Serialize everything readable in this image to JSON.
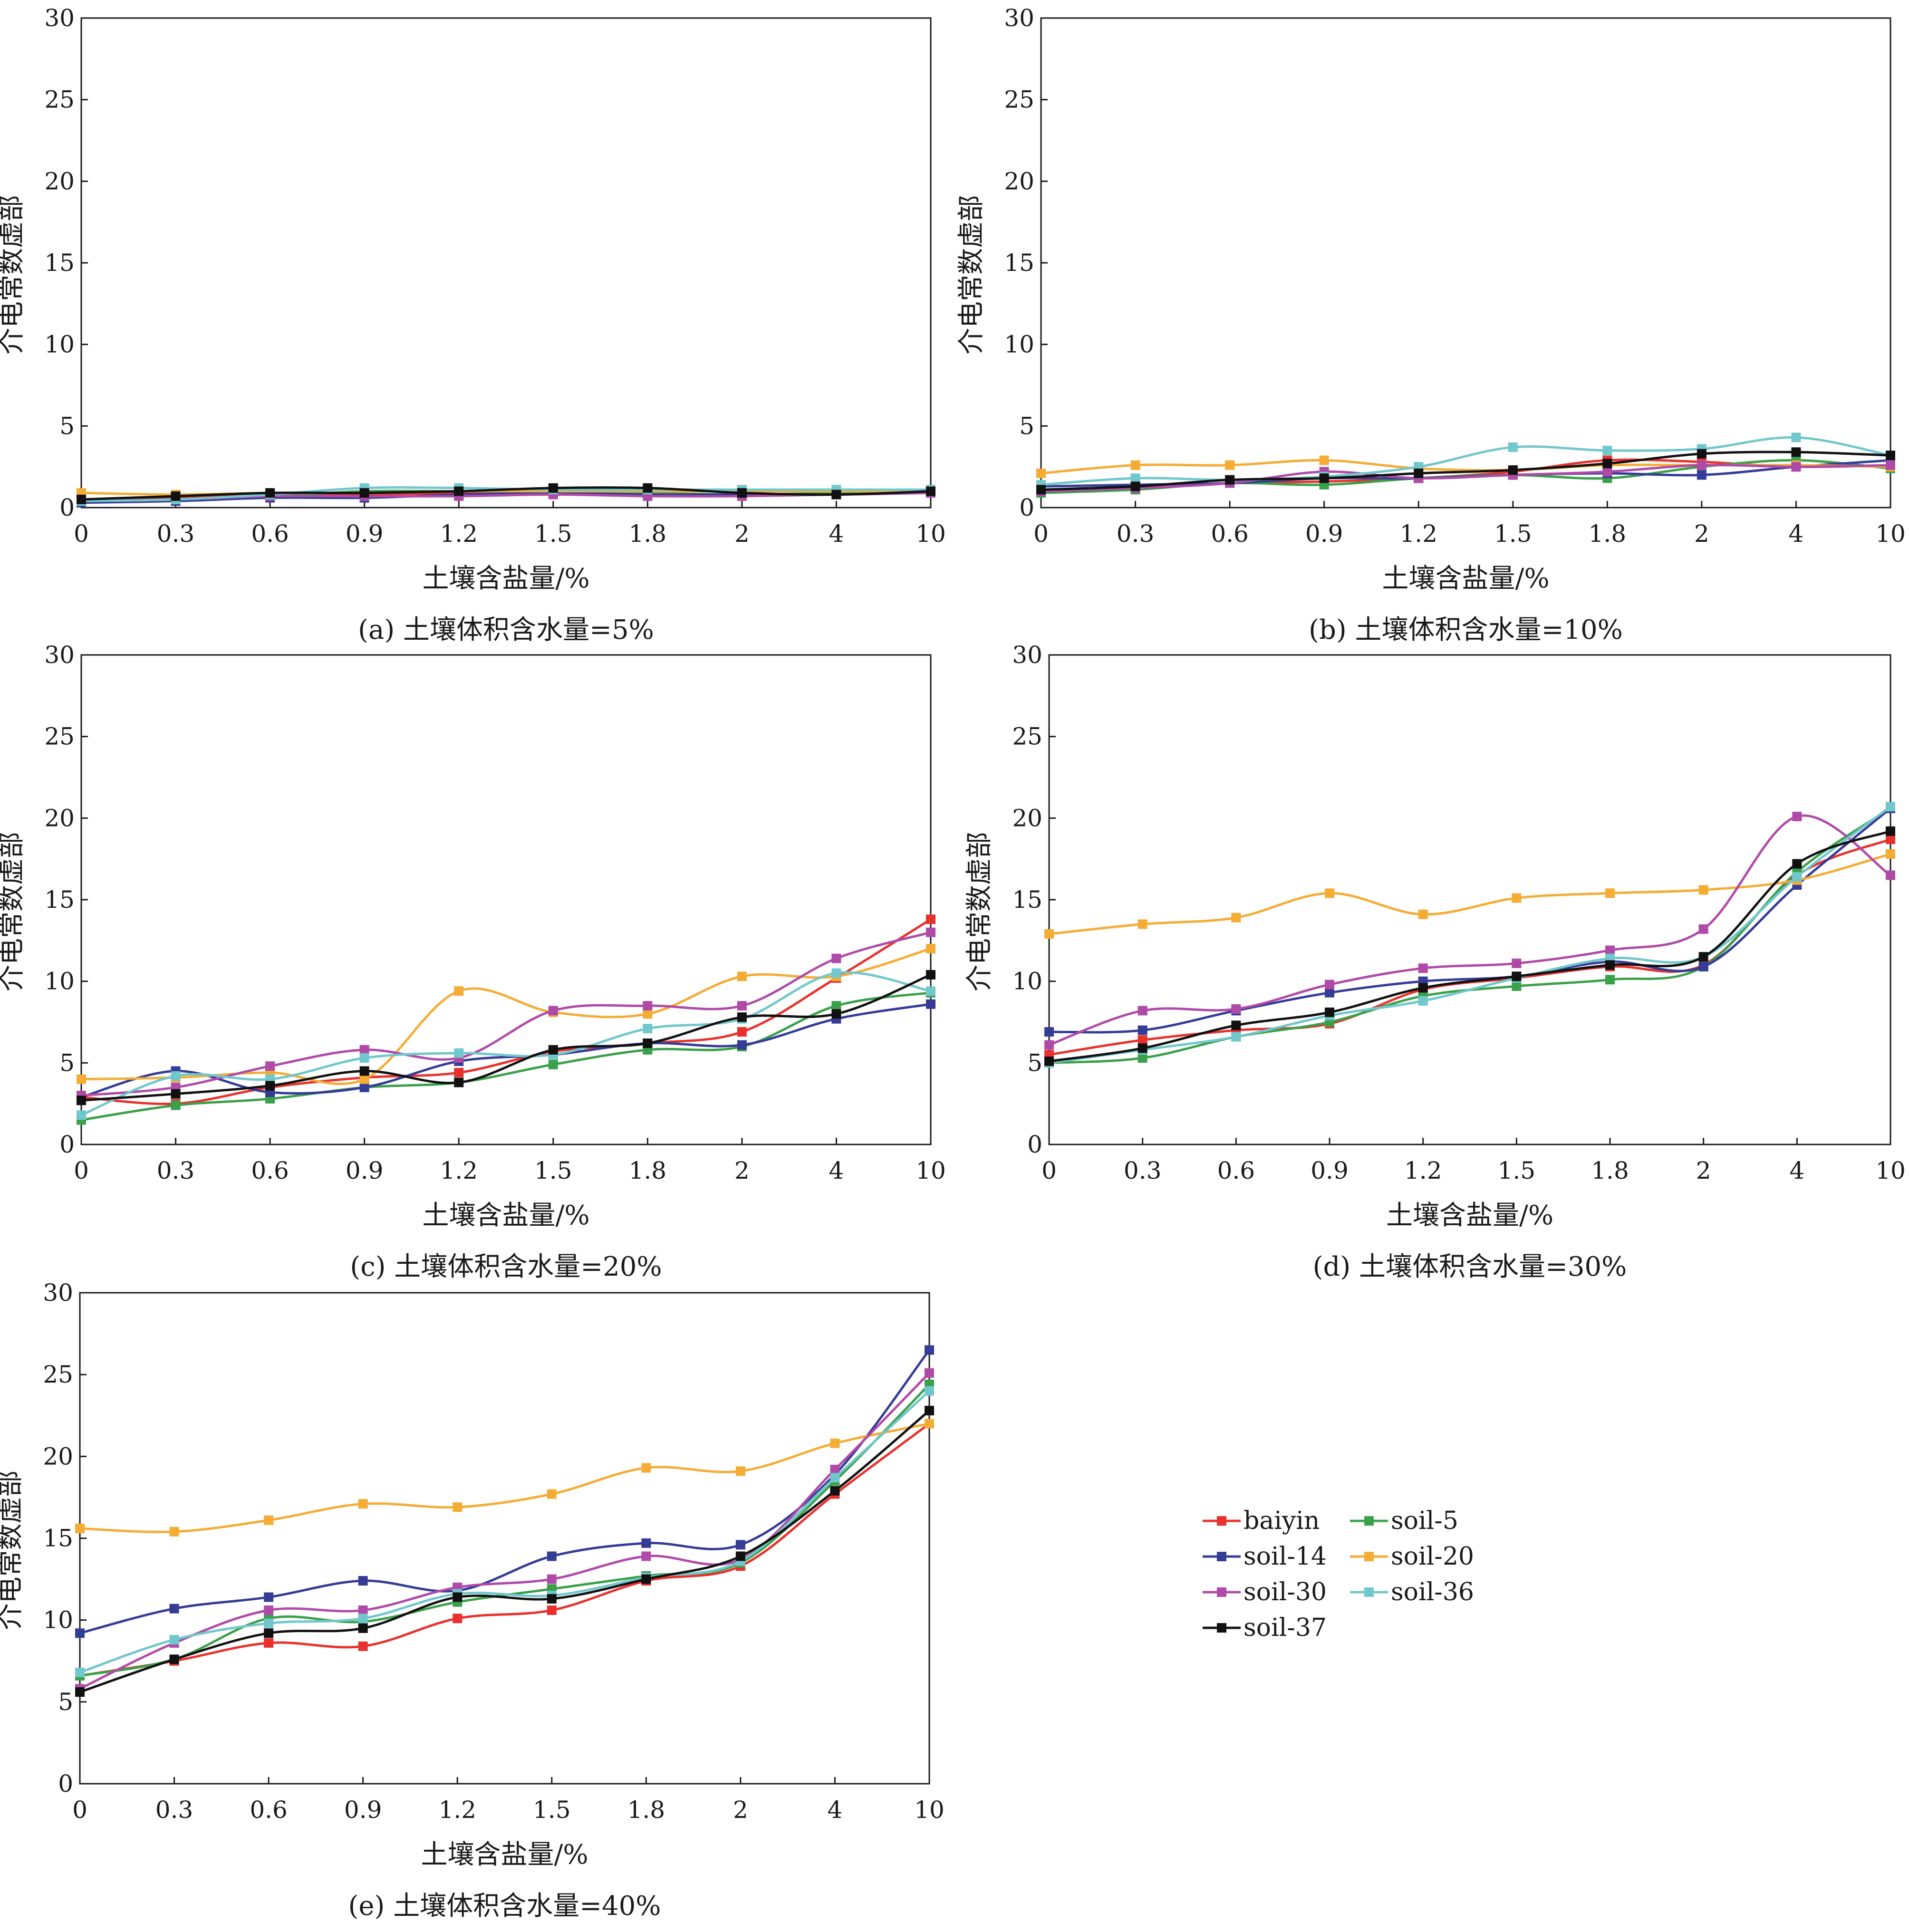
{
  "colors": {
    "baiyin": "#e8312d",
    "soil-5": "#3aa04a",
    "soil-14": "#343c96",
    "soil-20": "#f4ac35",
    "soil-30": "#b04aa8",
    "soil-36": "#70c7cc",
    "soil-37": "#111111"
  },
  "chart_data": [
    {
      "type": "line",
      "caption": "(a) 土壤体积含水量=5%",
      "xlabel": "土壤含盐量/%",
      "ylabel": "介电常数虚部",
      "categories": [
        "0",
        "0.3",
        "0.6",
        "0.9",
        "1.2",
        "1.5",
        "1.8",
        "2",
        "4",
        "10"
      ],
      "ylim": [
        0,
        30
      ],
      "yticks": [
        0,
        5,
        10,
        15,
        20,
        25,
        30
      ],
      "series": [
        {
          "name": "baiyin",
          "values": [
            0.4,
            0.6,
            0.8,
            0.8,
            0.9,
            1.1,
            0.9,
            0.8,
            0.9,
            1.1
          ]
        },
        {
          "name": "soil-5",
          "values": [
            0.3,
            0.5,
            0.7,
            1.0,
            1.0,
            1.0,
            0.9,
            0.8,
            0.9,
            1.0
          ]
        },
        {
          "name": "soil-14",
          "values": [
            0.3,
            0.4,
            0.6,
            0.6,
            0.8,
            0.9,
            0.8,
            0.8,
            0.8,
            0.9
          ]
        },
        {
          "name": "soil-20",
          "values": [
            0.9,
            0.8,
            0.9,
            0.9,
            1.0,
            1.0,
            1.0,
            1.0,
            1.0,
            1.0
          ]
        },
        {
          "name": "soil-30",
          "values": [
            0.4,
            0.5,
            0.7,
            0.7,
            0.7,
            0.8,
            0.7,
            0.7,
            0.8,
            0.9
          ]
        },
        {
          "name": "soil-36",
          "values": [
            0.4,
            0.5,
            0.8,
            1.2,
            1.2,
            1.1,
            1.1,
            1.1,
            1.1,
            1.1
          ]
        },
        {
          "name": "soil-37",
          "values": [
            0.5,
            0.7,
            0.9,
            0.9,
            1.0,
            1.2,
            1.2,
            0.9,
            0.8,
            1.0
          ]
        }
      ]
    },
    {
      "type": "line",
      "caption": "(b) 土壤体积含水量=10%",
      "xlabel": "土壤含盐量/%",
      "ylabel": "介电常数虚部",
      "categories": [
        "0",
        "0.3",
        "0.6",
        "0.9",
        "1.2",
        "1.5",
        "1.8",
        "2",
        "4",
        "10"
      ],
      "ylim": [
        0,
        30
      ],
      "yticks": [
        0,
        5,
        10,
        15,
        20,
        25,
        30
      ],
      "series": [
        {
          "name": "baiyin",
          "values": [
            1.0,
            1.2,
            1.5,
            1.6,
            1.8,
            2.2,
            2.9,
            2.8,
            2.5,
            2.6
          ]
        },
        {
          "name": "soil-5",
          "values": [
            0.9,
            1.1,
            1.5,
            1.4,
            1.8,
            2.0,
            1.8,
            2.5,
            2.9,
            2.4
          ]
        },
        {
          "name": "soil-14",
          "values": [
            1.3,
            1.4,
            1.5,
            1.8,
            1.8,
            2.0,
            2.1,
            2.0,
            2.5,
            2.9
          ]
        },
        {
          "name": "soil-20",
          "values": [
            2.1,
            2.6,
            2.6,
            2.9,
            2.4,
            2.3,
            2.6,
            2.6,
            2.6,
            2.5
          ]
        },
        {
          "name": "soil-30",
          "values": [
            1.0,
            1.2,
            1.5,
            2.2,
            1.8,
            2.0,
            2.2,
            2.6,
            2.5,
            2.6
          ]
        },
        {
          "name": "soil-36",
          "values": [
            1.4,
            1.8,
            1.7,
            1.9,
            2.5,
            3.7,
            3.5,
            3.6,
            4.3,
            3.2
          ]
        },
        {
          "name": "soil-37",
          "values": [
            1.1,
            1.3,
            1.7,
            1.8,
            2.1,
            2.3,
            2.7,
            3.3,
            3.4,
            3.2
          ]
        }
      ]
    },
    {
      "type": "line",
      "caption": "(c) 土壤体积含水量=20%",
      "xlabel": "土壤含盐量/%",
      "ylabel": "介电常数虚部",
      "categories": [
        "0",
        "0.3",
        "0.6",
        "0.9",
        "1.2",
        "1.5",
        "1.8",
        "2",
        "4",
        "10"
      ],
      "ylim": [
        0,
        30
      ],
      "yticks": [
        0,
        5,
        10,
        15,
        20,
        25,
        30
      ],
      "series": [
        {
          "name": "baiyin",
          "values": [
            2.9,
            2.5,
            3.5,
            4.1,
            4.4,
            5.7,
            6.2,
            6.9,
            10.2,
            13.8
          ]
        },
        {
          "name": "soil-5",
          "values": [
            1.5,
            2.4,
            2.8,
            3.5,
            3.8,
            4.9,
            5.8,
            6.0,
            8.5,
            9.3
          ]
        },
        {
          "name": "soil-14",
          "values": [
            2.9,
            4.5,
            3.2,
            3.5,
            5.1,
            5.5,
            6.2,
            6.1,
            7.7,
            8.6
          ]
        },
        {
          "name": "soil-20",
          "values": [
            4.0,
            4.1,
            4.4,
            4.0,
            9.4,
            8.1,
            8.0,
            10.3,
            10.3,
            12.0
          ]
        },
        {
          "name": "soil-30",
          "values": [
            3.0,
            3.5,
            4.8,
            5.8,
            5.3,
            8.2,
            8.5,
            8.5,
            11.4,
            13.0
          ]
        },
        {
          "name": "soil-36",
          "values": [
            1.8,
            4.2,
            4.0,
            5.3,
            5.6,
            5.5,
            7.1,
            7.7,
            10.5,
            9.4
          ]
        },
        {
          "name": "soil-37",
          "values": [
            2.7,
            3.1,
            3.6,
            4.5,
            3.8,
            5.8,
            6.2,
            7.8,
            8.0,
            10.4
          ]
        }
      ]
    },
    {
      "type": "line",
      "caption": "(d) 土壤体积含水量=30%",
      "xlabel": "土壤含盐量/%",
      "ylabel": "介电常数虚部",
      "categories": [
        "0",
        "0.3",
        "0.6",
        "0.9",
        "1.2",
        "1.5",
        "1.8",
        "2",
        "4",
        "10"
      ],
      "ylim": [
        0,
        30
      ],
      "yticks": [
        0,
        5,
        10,
        15,
        20,
        25,
        30
      ],
      "series": [
        {
          "name": "baiyin",
          "values": [
            5.5,
            6.4,
            7.0,
            7.4,
            9.5,
            10.2,
            10.9,
            11.0,
            16.5,
            18.7
          ]
        },
        {
          "name": "soil-5",
          "values": [
            5.0,
            5.3,
            6.6,
            7.5,
            9.1,
            9.7,
            10.1,
            10.9,
            16.7,
            20.6
          ]
        },
        {
          "name": "soil-14",
          "values": [
            6.9,
            7.0,
            8.2,
            9.3,
            10.0,
            10.3,
            11.2,
            10.9,
            15.9,
            20.6
          ]
        },
        {
          "name": "soil-20",
          "values": [
            12.9,
            13.5,
            13.9,
            15.4,
            14.1,
            15.1,
            15.4,
            15.6,
            16.2,
            17.8
          ]
        },
        {
          "name": "soil-30",
          "values": [
            6.1,
            8.2,
            8.3,
            9.8,
            10.8,
            11.1,
            11.9,
            13.2,
            20.1,
            16.5
          ]
        },
        {
          "name": "soil-36",
          "values": [
            5.0,
            5.8,
            6.6,
            7.9,
            8.8,
            10.2,
            11.4,
            11.5,
            16.4,
            20.7
          ]
        },
        {
          "name": "soil-37",
          "values": [
            5.1,
            5.9,
            7.3,
            8.1,
            9.6,
            10.3,
            11.0,
            11.5,
            17.2,
            19.2
          ]
        }
      ]
    },
    {
      "type": "line",
      "caption": "(e) 土壤体积含水量=40%",
      "xlabel": "土壤含盐量/%",
      "ylabel": "介电常数虚部",
      "categories": [
        "0",
        "0.3",
        "0.6",
        "0.9",
        "1.2",
        "1.5",
        "1.8",
        "2",
        "4",
        "10"
      ],
      "ylim": [
        0,
        30
      ],
      "yticks": [
        0,
        5,
        10,
        15,
        20,
        25,
        30
      ],
      "series": [
        {
          "name": "baiyin",
          "values": [
            6.6,
            7.5,
            8.6,
            8.4,
            10.1,
            10.6,
            12.4,
            13.3,
            17.7,
            22.0
          ]
        },
        {
          "name": "soil-5",
          "values": [
            6.6,
            7.6,
            10.1,
            9.9,
            11.1,
            11.9,
            12.7,
            13.5,
            18.5,
            24.4
          ]
        },
        {
          "name": "soil-14",
          "values": [
            9.2,
            10.7,
            11.4,
            12.4,
            11.8,
            13.9,
            14.7,
            14.6,
            18.9,
            26.5
          ]
        },
        {
          "name": "soil-20",
          "values": [
            15.6,
            15.4,
            16.1,
            17.1,
            16.9,
            17.7,
            19.3,
            19.1,
            20.8,
            22.0
          ]
        },
        {
          "name": "soil-30",
          "values": [
            5.8,
            8.6,
            10.6,
            10.6,
            12.0,
            12.5,
            13.9,
            13.7,
            19.2,
            25.1
          ]
        },
        {
          "name": "soil-36",
          "values": [
            6.8,
            8.8,
            9.8,
            10.1,
            11.6,
            11.5,
            12.6,
            13.6,
            18.7,
            24.0
          ]
        },
        {
          "name": "soil-37",
          "values": [
            5.6,
            7.6,
            9.2,
            9.5,
            11.4,
            11.3,
            12.5,
            13.9,
            17.9,
            22.8
          ]
        }
      ]
    }
  ],
  "legend": {
    "placement": "right of panel (e)",
    "entries": [
      "baiyin",
      "soil-5",
      "soil-14",
      "soil-20",
      "soil-30",
      "soil-36",
      "soil-37"
    ]
  }
}
